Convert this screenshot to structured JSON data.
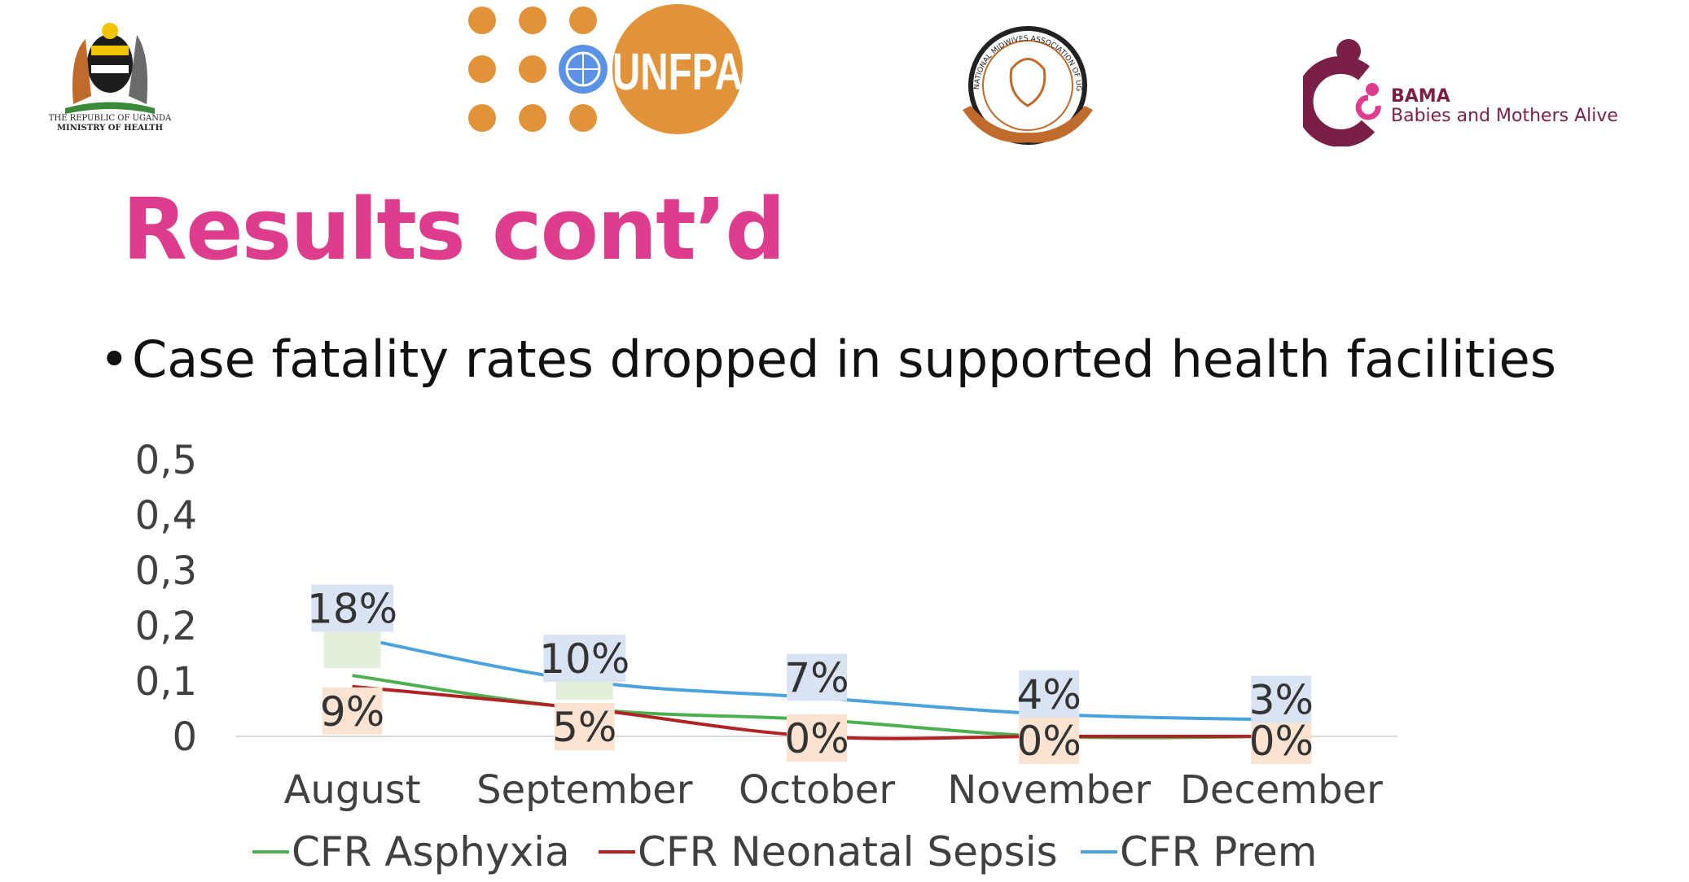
{
  "logos": {
    "moh": {
      "line1": "THE REPUBLIC OF UGANDA",
      "line2": "MINISTRY OF HEALTH"
    },
    "unfpa": {
      "text": "UNFPA",
      "color": "#e2933a"
    },
    "nmau": {
      "text": "NATIONAL MIDWIVES ASSOCIATION OF UGANDA"
    },
    "bama": {
      "short": "BAMA",
      "full": "Babies and Mothers Alive",
      "color": "#7a1f45"
    }
  },
  "slide": {
    "title": "Results cont’d",
    "bullet": "Case fatality rates dropped in supported health facilities"
  },
  "chart_data": {
    "type": "line",
    "categories": [
      "August",
      "September",
      "October",
      "November",
      "December"
    ],
    "y_ticks": [
      "0",
      "0,1",
      "0,2",
      "0,3",
      "0,4",
      "0,5"
    ],
    "ylim": [
      0,
      0.5
    ],
    "series": [
      {
        "name": "CFR Asphyxia",
        "color": "#4caf50",
        "values": [
          0.11,
          0.05,
          0.03,
          0.0,
          0.0
        ],
        "labels": [
          "",
          "",
          "",
          "",
          ""
        ],
        "label_bg": "#e2efda"
      },
      {
        "name": "CFR Neonatal Sepsis",
        "color": "#b22222",
        "values": [
          0.09,
          0.05,
          0.0,
          0.0,
          0.0
        ],
        "labels": [
          "9%",
          "5%",
          "0%",
          "0%",
          "0%"
        ],
        "label_bg": "#fbe3d2"
      },
      {
        "name": "CFR Prem",
        "color": "#4aa3df",
        "values": [
          0.18,
          0.1,
          0.07,
          0.04,
          0.03
        ],
        "labels": [
          "18%",
          "10%",
          "7%",
          "4%",
          "3%"
        ],
        "label_bg": "#dae3f3"
      }
    ],
    "legend_position": "bottom"
  }
}
